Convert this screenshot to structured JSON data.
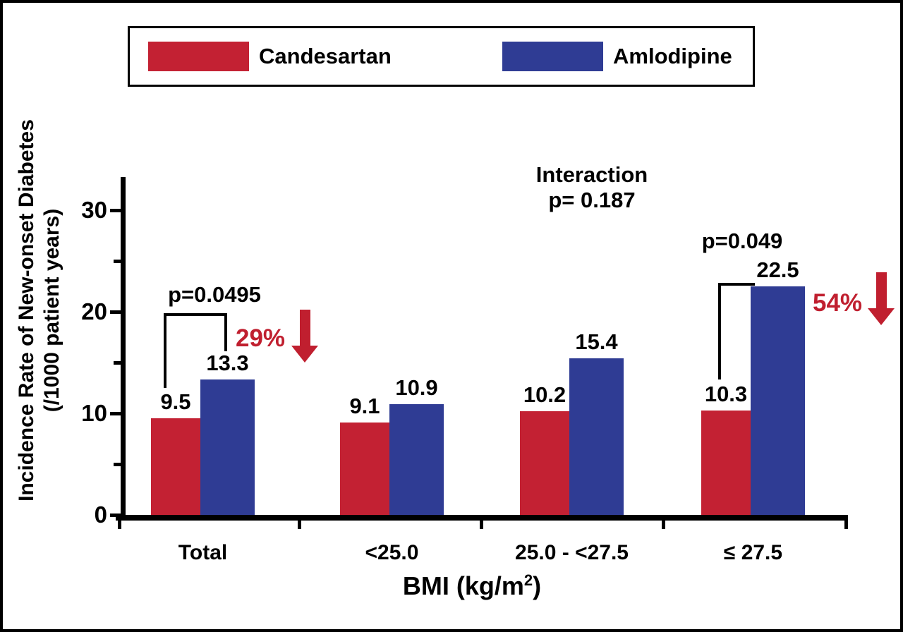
{
  "legend": {
    "items": [
      {
        "label": "Candesartan",
        "color": "#c32133"
      },
      {
        "label": "Amlodipine",
        "color": "#2f3c94"
      }
    ]
  },
  "chart_data": {
    "type": "bar",
    "title": "",
    "categories": [
      "Total",
      "<25.0",
      "25.0 - <27.5",
      "≤ 27.5"
    ],
    "series": [
      {
        "name": "Candesartan",
        "color": "#c32133",
        "values": [
          9.5,
          9.1,
          10.2,
          10.3
        ]
      },
      {
        "name": "Amlodipine",
        "color": "#2f3c94",
        "values": [
          13.3,
          10.9,
          15.4,
          22.5
        ]
      }
    ],
    "value_labels": [
      [
        "9.5",
        "9.1",
        "10.2",
        "10.3"
      ],
      [
        "13.3",
        "10.9",
        "15.4",
        "22.5"
      ]
    ],
    "ylabel_line1": "Incidence Rate of New-onset Diabetes",
    "ylabel_line2": "(/1000 patient years)",
    "xlabel_main": "BMI (kg/m",
    "xlabel_sup": "2",
    "xlabel_close": ")",
    "ylim": [
      0,
      33
    ],
    "yticks_major": [
      0,
      10,
      20,
      30
    ],
    "yticks_minor": [
      5,
      15,
      25
    ],
    "grid": false,
    "legend_position": "top",
    "annotations": {
      "interaction_line1": "Interaction",
      "interaction_line2": "p= 0.187",
      "comparisons": [
        {
          "group": "Total",
          "p_label": "p=0.0495",
          "percent_label": "29%"
        },
        {
          "group": "≤ 27.5",
          "p_label": "p=0.049",
          "percent_label": "54%"
        }
      ],
      "arrow_color": "#c01f2f"
    }
  }
}
